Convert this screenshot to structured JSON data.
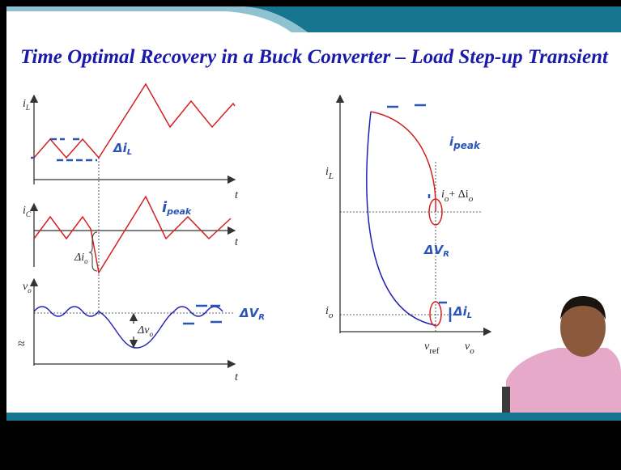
{
  "slide": {
    "title": "Time Optimal Recovery in a Buck Converter – Load Step-up Transient"
  },
  "plot_il": {
    "y_label": "i",
    "y_sub": "L",
    "x_label": "t",
    "note": "Δi",
    "note_sub": "L"
  },
  "plot_ic": {
    "y_label": "i",
    "y_sub": "C",
    "x_label": "t",
    "delta_label": "Δi",
    "delta_sub": "o",
    "note": "i",
    "note_sub": "peak"
  },
  "plot_vo": {
    "y_label": "v",
    "y_sub": "o",
    "x_label": "t",
    "delta_label": "Δv",
    "delta_sub": "o",
    "break_symbol": "≈",
    "note": "ΔV",
    "note_sub": "R"
  },
  "phase_plane": {
    "y_label": "i",
    "y_sub": "L",
    "upper_level": "i",
    "upper_sub": "o",
    "upper_plus": "+ Δi",
    "upper_plus_sub": "o",
    "lower_level": "i",
    "lower_sub": "o",
    "x_ref": "v",
    "x_ref_sub": "ref",
    "x_label": "v",
    "x_sub": "o",
    "note_peak": "i",
    "note_peak_sub": "peak",
    "note_dv": "ΔV",
    "note_dv_sub": "R",
    "note_di": "Δi",
    "note_di_sub": "L"
  }
}
